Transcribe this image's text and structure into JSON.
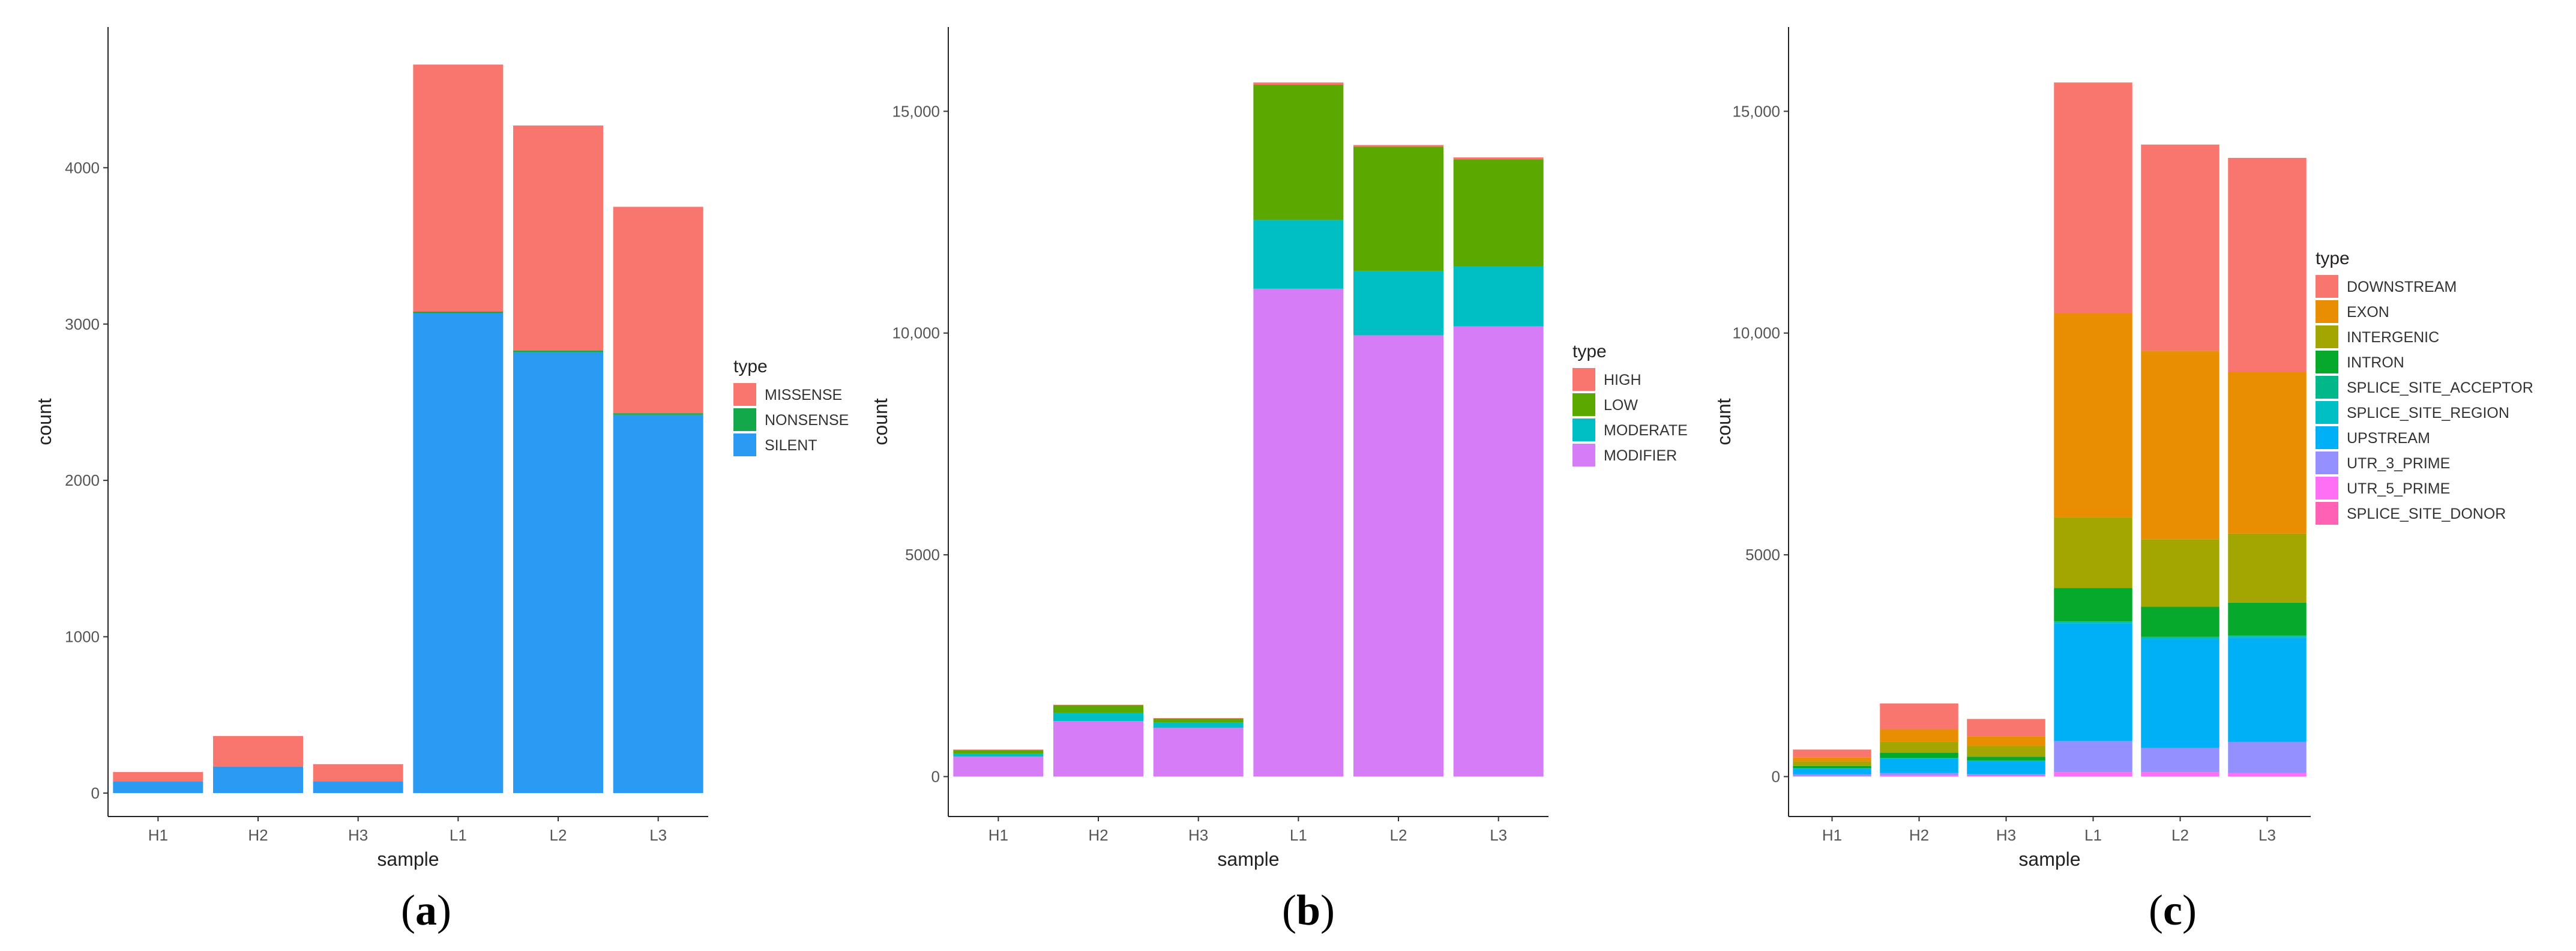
{
  "panels": [
    {
      "caption": "(a)",
      "caption_label": "a"
    },
    {
      "caption": "(b)",
      "caption_label": "b"
    },
    {
      "caption": "(c)",
      "caption_label": "c"
    }
  ],
  "chart_data": [
    {
      "type": "bar",
      "stacked": true,
      "title": "",
      "xlabel": "sample",
      "ylabel": "count",
      "categories": [
        "H1",
        "H2",
        "H3",
        "L1",
        "L2",
        "L3"
      ],
      "ylim": [
        -150,
        4900
      ],
      "yticks": [
        0,
        1000,
        2000,
        3000,
        4000
      ],
      "ytick_labels": [
        "0",
        "1000",
        "2000",
        "3000",
        "4000"
      ],
      "legend_title": "type",
      "legend": [
        "MISSENSE",
        "NONSENSE",
        "SILENT"
      ],
      "series": [
        {
          "name": "SILENT",
          "color": "#2b9af3",
          "values": [
            75,
            170,
            75,
            3070,
            2820,
            2420
          ]
        },
        {
          "name": "NONSENSE",
          "color": "#13a94a",
          "values": [
            0,
            0,
            0,
            10,
            10,
            10
          ]
        },
        {
          "name": "MISSENSE",
          "color": "#f8766d",
          "values": [
            60,
            195,
            110,
            1580,
            1440,
            1320
          ]
        }
      ]
    },
    {
      "type": "bar",
      "stacked": true,
      "title": "",
      "xlabel": "sample",
      "ylabel": "count",
      "categories": [
        "H1",
        "H2",
        "H3",
        "L1",
        "L2",
        "L3"
      ],
      "ylim": [
        -900,
        16900
      ],
      "yticks": [
        0,
        5000,
        10000,
        15000
      ],
      "ytick_labels": [
        "0",
        "5000",
        "10,000",
        "15,000"
      ],
      "legend_title": "type",
      "legend": [
        "HIGH",
        "LOW",
        "MODERATE",
        "MODIFIER"
      ],
      "series": [
        {
          "name": "MODIFIER",
          "color": "#d67cf7",
          "values": [
            450,
            1250,
            1100,
            11000,
            9950,
            10150
          ]
        },
        {
          "name": "MODERATE",
          "color": "#00bfc4",
          "values": [
            70,
            180,
            120,
            1550,
            1450,
            1350
          ]
        },
        {
          "name": "LOW",
          "color": "#5aa800",
          "values": [
            80,
            180,
            90,
            3050,
            2800,
            2420
          ]
        },
        {
          "name": "HIGH",
          "color": "#f8766d",
          "values": [
            10,
            10,
            10,
            50,
            40,
            40
          ]
        }
      ]
    },
    {
      "type": "bar",
      "stacked": true,
      "title": "",
      "xlabel": "sample",
      "ylabel": "count",
      "categories": [
        "H1",
        "H2",
        "H3",
        "L1",
        "L2",
        "L3"
      ],
      "ylim": [
        -900,
        16900
      ],
      "yticks": [
        0,
        5000,
        10000,
        15000
      ],
      "ytick_labels": [
        "0",
        "5000",
        "10,000",
        "15,000"
      ],
      "legend_title": "type",
      "legend": [
        "DOWNSTREAM",
        "EXON",
        "INTERGENIC",
        "INTRON",
        "SPLICE_SITE_ACCEPTOR",
        "SPLICE_SITE_REGION",
        "UPSTREAM",
        "UTR_3_PRIME",
        "UTR_5_PRIME",
        "SPLICE_SITE_DONOR"
      ],
      "series": [
        {
          "name": "SPLICE_SITE_DONOR",
          "color": "#ff61b5",
          "values": [
            0,
            0,
            0,
            0,
            0,
            0
          ]
        },
        {
          "name": "UTR_5_PRIME",
          "color": "#ff6ff5",
          "values": [
            10,
            30,
            20,
            100,
            100,
            80
          ]
        },
        {
          "name": "UTR_3_PRIME",
          "color": "#9590ff",
          "values": [
            40,
            50,
            40,
            700,
            550,
            700
          ]
        },
        {
          "name": "UPSTREAM",
          "color": "#00b0f6",
          "values": [
            130,
            330,
            290,
            2650,
            2450,
            2350
          ]
        },
        {
          "name": "SPLICE_SITE_REGION",
          "color": "#00bfc4",
          "values": [
            10,
            10,
            10,
            40,
            40,
            40
          ]
        },
        {
          "name": "SPLICE_SITE_ACCEPTOR",
          "color": "#00b88a",
          "values": [
            0,
            0,
            0,
            10,
            10,
            10
          ]
        },
        {
          "name": "INTRON",
          "color": "#06a92b",
          "values": [
            50,
            120,
            90,
            750,
            680,
            740
          ]
        },
        {
          "name": "INTERGENIC",
          "color": "#a3a500",
          "values": [
            100,
            250,
            240,
            1600,
            1520,
            1560
          ]
        },
        {
          "name": "EXON",
          "color": "#e88e00",
          "values": [
            90,
            280,
            220,
            4600,
            4250,
            3650
          ]
        },
        {
          "name": "DOWNSTREAM",
          "color": "#f8766d",
          "values": [
            180,
            580,
            390,
            5200,
            4650,
            4820
          ]
        }
      ]
    }
  ]
}
